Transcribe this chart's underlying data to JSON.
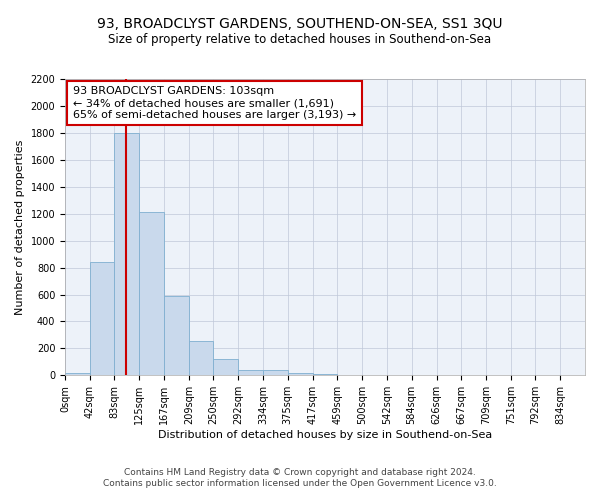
{
  "title": "93, BROADCLYST GARDENS, SOUTHEND-ON-SEA, SS1 3QU",
  "subtitle": "Size of property relative to detached houses in Southend-on-Sea",
  "xlabel": "Distribution of detached houses by size in Southend-on-Sea",
  "ylabel": "Number of detached properties",
  "footer_line1": "Contains HM Land Registry data © Crown copyright and database right 2024.",
  "footer_line2": "Contains public sector information licensed under the Open Government Licence v3.0.",
  "annotation_line1": "93 BROADCLYST GARDENS: 103sqm",
  "annotation_line2": "← 34% of detached houses are smaller (1,691)",
  "annotation_line3": "65% of semi-detached houses are larger (3,193) →",
  "bar_left_edges": [
    0,
    42,
    83,
    125,
    167,
    209,
    250,
    292,
    334,
    375,
    417,
    459,
    500,
    542,
    584,
    626,
    667,
    709,
    751,
    792
  ],
  "bar_widths": [
    42,
    41,
    42,
    42,
    42,
    41,
    42,
    42,
    41,
    42,
    42,
    41,
    42,
    42,
    42,
    41,
    42,
    42,
    41,
    42
  ],
  "bar_heights": [
    20,
    840,
    1800,
    1210,
    590,
    255,
    120,
    40,
    40,
    20,
    10,
    3,
    1,
    0,
    0,
    0,
    0,
    0,
    0,
    0
  ],
  "bar_color": "#c9d9ec",
  "bar_edge_color": "#7fafd0",
  "red_line_x": 103,
  "ylim": [
    0,
    2200
  ],
  "yticks": [
    0,
    200,
    400,
    600,
    800,
    1000,
    1200,
    1400,
    1600,
    1800,
    2000,
    2200
  ],
  "tick_labels": [
    "0sqm",
    "42sqm",
    "83sqm",
    "125sqm",
    "167sqm",
    "209sqm",
    "250sqm",
    "292sqm",
    "334sqm",
    "375sqm",
    "417sqm",
    "459sqm",
    "500sqm",
    "542sqm",
    "584sqm",
    "626sqm",
    "667sqm",
    "709sqm",
    "751sqm",
    "792sqm",
    "834sqm"
  ],
  "xlim": [
    0,
    876
  ],
  "annotation_box_color": "#ffffff",
  "annotation_box_edge": "#cc0000",
  "title_fontsize": 10,
  "subtitle_fontsize": 8.5,
  "axis_label_fontsize": 8,
  "tick_fontsize": 7,
  "annotation_fontsize": 8,
  "footer_fontsize": 6.5,
  "bg_color": "#edf2f9"
}
